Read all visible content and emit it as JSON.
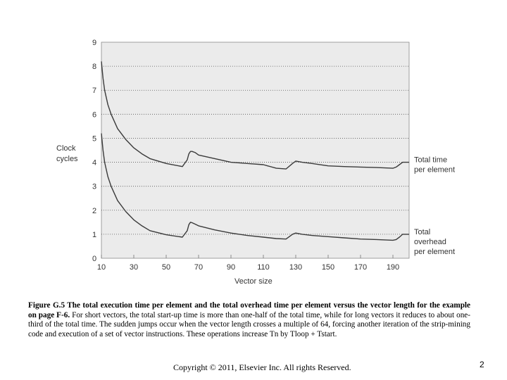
{
  "chart_data": {
    "type": "line",
    "title": "",
    "xlabel": "Vector size",
    "ylabel": "Clock cycles",
    "xlim": [
      10,
      200
    ],
    "ylim": [
      0,
      9
    ],
    "x_ticks": [
      10,
      30,
      50,
      70,
      90,
      110,
      130,
      150,
      170,
      190
    ],
    "y_ticks": [
      0,
      1,
      2,
      3,
      4,
      5,
      6,
      7,
      8,
      9
    ],
    "grid": "horizontal dotted",
    "series": [
      {
        "name": "Total time per element",
        "label_lines": [
          "Total time",
          "per element"
        ],
        "x": [
          10,
          11,
          12,
          14,
          16,
          20,
          25,
          30,
          35,
          40,
          50,
          60,
          63,
          64,
          65,
          66,
          68,
          70,
          80,
          90,
          100,
          110,
          118,
          124,
          128,
          130,
          134,
          140,
          150,
          160,
          170,
          180,
          190,
          192,
          194,
          196,
          200
        ],
        "values": [
          8.2,
          7.5,
          7.0,
          6.4,
          6.0,
          5.4,
          4.95,
          4.6,
          4.35,
          4.15,
          3.95,
          3.82,
          4.1,
          4.35,
          4.45,
          4.45,
          4.4,
          4.3,
          4.15,
          4.0,
          3.95,
          3.9,
          3.75,
          3.72,
          3.95,
          4.05,
          4.0,
          3.95,
          3.85,
          3.82,
          3.8,
          3.78,
          3.75,
          3.8,
          3.9,
          4.0,
          4.0
        ]
      },
      {
        "name": "Total overhead per element",
        "label_lines": [
          "Total",
          "overhead",
          "per element"
        ],
        "x": [
          10,
          11,
          12,
          14,
          16,
          20,
          25,
          30,
          35,
          40,
          50,
          60,
          63,
          64,
          65,
          66,
          68,
          70,
          80,
          90,
          100,
          110,
          118,
          124,
          128,
          130,
          134,
          140,
          150,
          160,
          170,
          180,
          190,
          192,
          194,
          196,
          200
        ],
        "values": [
          5.2,
          4.5,
          4.0,
          3.4,
          3.0,
          2.4,
          1.95,
          1.6,
          1.35,
          1.15,
          0.98,
          0.88,
          1.15,
          1.4,
          1.5,
          1.48,
          1.42,
          1.35,
          1.18,
          1.05,
          0.95,
          0.88,
          0.82,
          0.8,
          1.0,
          1.05,
          1.0,
          0.95,
          0.9,
          0.85,
          0.8,
          0.78,
          0.75,
          0.78,
          0.88,
          1.0,
          1.0
        ]
      }
    ]
  },
  "caption": {
    "bold": "Figure G.5 The total execution time per element and the total overhead time per element versus the vector length for the example on page F-6.",
    "text": " For short vectors, the total start-up time is more than one-half of the total time, while for long vectors it reduces to about one-third of the total time. The sudden jumps occur when the vector length crosses a multiple of 64, forcing another iteration of the strip-mining code and execution of a set of vector instructions. These operations increase Tn by Tloop + Tstart."
  },
  "footer": {
    "copyright": "Copyright © 2011, Elsevier Inc. All rights Reserved.",
    "page_number": "2"
  },
  "colors": {
    "plot_bg": "#ebebeb",
    "line": "#3a3a3a",
    "grid": "#555555",
    "text": "#333333"
  }
}
